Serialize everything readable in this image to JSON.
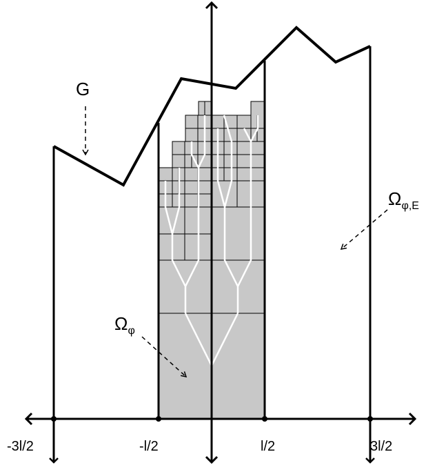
{
  "labels": {
    "graph": "G",
    "omega": "Ω",
    "omega_sub": "φ",
    "omega_ext": "Ω",
    "omega_ext_sub": "φ,E"
  },
  "x_axis_ticks": [
    "-3l/2",
    "-l/2",
    "l/2",
    "3l/2"
  ],
  "colors": {
    "stroke": "#000000",
    "shaded": "#c8c8c8",
    "tree": "#ffffff"
  }
}
